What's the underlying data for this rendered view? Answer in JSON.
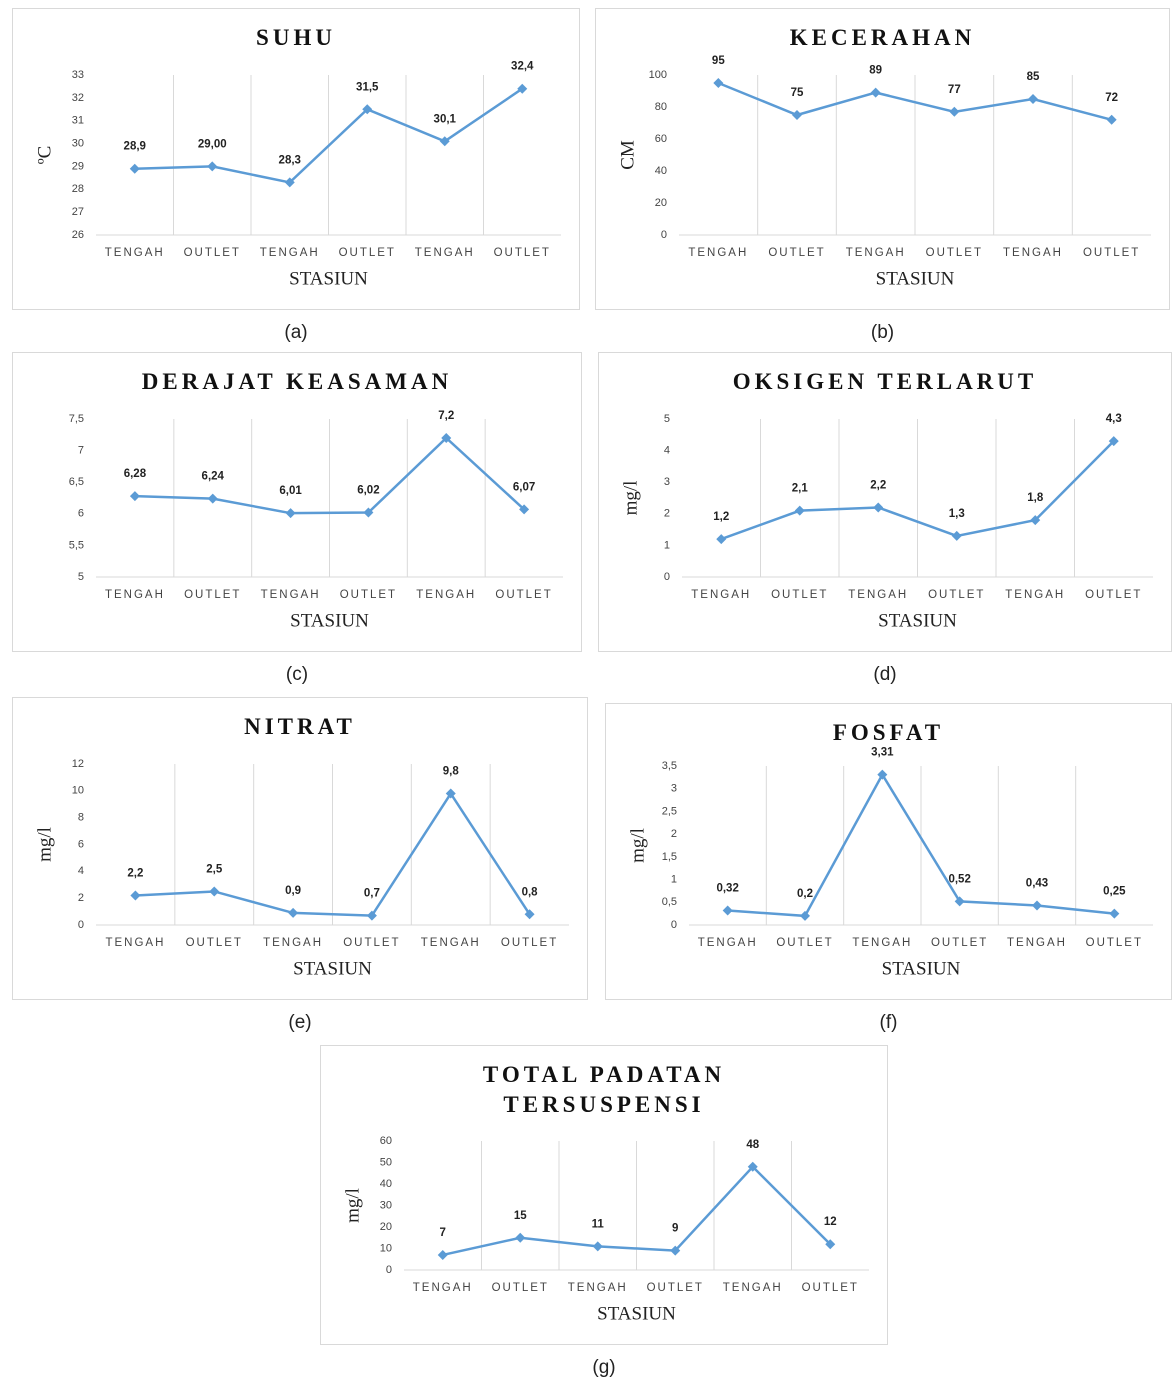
{
  "chart_data": [
    {
      "type": "line",
      "title": "SUHU",
      "caption": "(a)",
      "xlabel": "STASIUN",
      "ylabel": "ºC",
      "categories": [
        "TENGAH",
        "OUTLET",
        "TENGAH",
        "OUTLET",
        "TENGAH",
        "OUTLET"
      ],
      "values": [
        28.9,
        29.0,
        28.3,
        31.5,
        30.1,
        32.4
      ],
      "value_labels": [
        "28,9",
        "29,00",
        "28,3",
        "31,5",
        "30,1",
        "32,4"
      ],
      "color": "#5b9bd5",
      "ylim": [
        26,
        33
      ],
      "yticks": [
        26,
        27,
        28,
        29,
        30,
        31,
        32,
        33
      ]
    },
    {
      "type": "line",
      "title": "KECERAHAN",
      "caption": "(b)",
      "xlabel": "STASIUN",
      "ylabel": "CM",
      "categories": [
        "TENGAH",
        "OUTLET",
        "TENGAH",
        "OUTLET",
        "TENGAH",
        "OUTLET"
      ],
      "values": [
        95,
        75,
        89,
        77,
        85,
        72
      ],
      "color": "#5b9bd5",
      "ylim": [
        0,
        100
      ],
      "yticks": [
        0,
        20,
        40,
        60,
        80,
        100
      ]
    },
    {
      "type": "line",
      "title": "DERAJAT KEASAMAN",
      "caption": "(c)",
      "xlabel": "STASIUN",
      "categories": [
        "TENGAH",
        "OUTLET",
        "TENGAH",
        "OUTLET",
        "TENGAH",
        "OUTLET"
      ],
      "values": [
        6.28,
        6.24,
        6.01,
        6.02,
        7.2,
        6.07
      ],
      "value_labels": [
        "6,28",
        "6,24",
        "6,01",
        "6,02",
        "7,2",
        "6,07"
      ],
      "color": "#5b9bd5",
      "ylim": [
        5,
        7.5
      ],
      "yticks": [
        5,
        {
          "value": 5.5,
          "label": "5,5"
        },
        6,
        {
          "value": 6.5,
          "label": "6,5"
        },
        7,
        {
          "value": 7.5,
          "label": "7,5"
        }
      ]
    },
    {
      "type": "line",
      "title": "OKSIGEN TERLARUT",
      "caption": "(d)",
      "xlabel": "STASIUN",
      "ylabel": "mg/l",
      "categories": [
        "TENGAH",
        "OUTLET",
        "TENGAH",
        "OUTLET",
        "TENGAH",
        "OUTLET"
      ],
      "values": [
        1.2,
        2.1,
        2.2,
        1.3,
        1.8,
        4.3
      ],
      "value_labels": [
        "1,2",
        "2,1",
        "2,2",
        "1,3",
        "1,8",
        "4,3"
      ],
      "color": "#5b9bd5",
      "ylim": [
        0,
        5
      ],
      "yticks": [
        0,
        1,
        2,
        3,
        4,
        5
      ]
    },
    {
      "type": "line",
      "title": "NITRAT",
      "caption": "(e)",
      "xlabel": "STASIUN",
      "ylabel": "mg/l",
      "categories": [
        "TENGAH",
        "OUTLET",
        "TENGAH",
        "OUTLET",
        "TENGAH",
        "OUTLET"
      ],
      "values": [
        2.2,
        2.5,
        0.9,
        0.7,
        9.8,
        0.8
      ],
      "value_labels": [
        "2,2",
        "2,5",
        "0,9",
        "0,7",
        "9,8",
        "0,8"
      ],
      "color": "#5b9bd5",
      "ylim": [
        0,
        12
      ],
      "yticks": [
        0,
        2,
        4,
        6,
        8,
        10,
        12
      ]
    },
    {
      "type": "line",
      "title": "FOSFAT",
      "caption": "(f)",
      "xlabel": "STASIUN",
      "ylabel": "mg/l",
      "categories": [
        "TENGAH",
        "OUTLET",
        "TENGAH",
        "OUTLET",
        "TENGAH",
        "OUTLET"
      ],
      "values": [
        0.32,
        0.2,
        3.31,
        0.52,
        0.43,
        0.25
      ],
      "value_labels": [
        "0,32",
        "0,2",
        "3,31",
        "0,52",
        "0,43",
        "0,25"
      ],
      "color": "#5b9bd5",
      "ylim": [
        0,
        3.5
      ],
      "yticks": [
        0,
        {
          "value": 0.5,
          "label": "0,5"
        },
        1,
        {
          "value": 1.5,
          "label": "1,5"
        },
        2,
        {
          "value": 2.5,
          "label": "2,5"
        },
        3,
        {
          "value": 3.5,
          "label": "3,5"
        }
      ]
    },
    {
      "type": "line",
      "title": "TOTAL PADATAN TERSUSPENSI",
      "caption": "(g)",
      "xlabel": "STASIUN",
      "ylabel": "mg/l",
      "categories": [
        "TENGAH",
        "OUTLET",
        "TENGAH",
        "OUTLET",
        "TENGAH",
        "OUTLET"
      ],
      "values": [
        7,
        15,
        11,
        9,
        48,
        12
      ],
      "color": "#5b9bd5",
      "ylim": [
        0,
        60
      ],
      "yticks": [
        0,
        10,
        20,
        30,
        40,
        50,
        60
      ]
    }
  ]
}
